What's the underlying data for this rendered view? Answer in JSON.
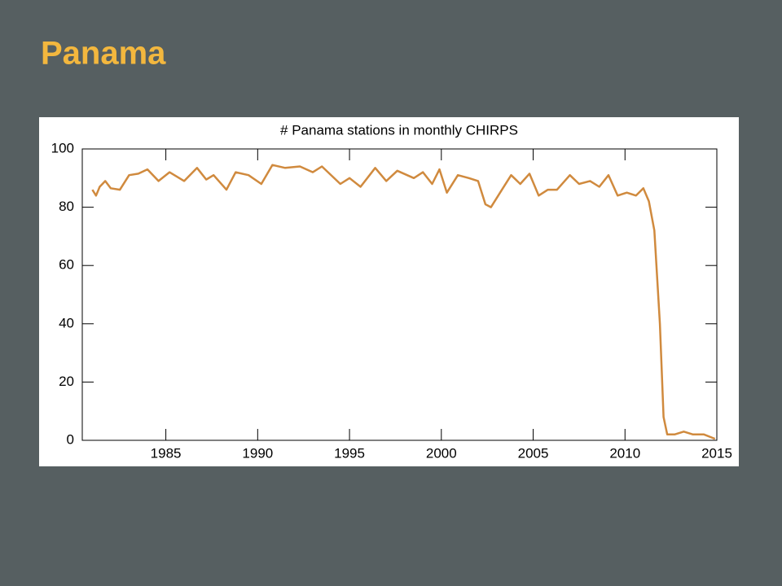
{
  "header": {
    "title": "Panama"
  },
  "chart_data": {
    "type": "line",
    "title": "# Panama stations in monthly CHIRPS",
    "x": [
      1981.0,
      1981.2,
      1981.4,
      1981.7,
      1982.0,
      1982.5,
      1983.0,
      1983.5,
      1984.0,
      1984.6,
      1985.2,
      1986.0,
      1986.7,
      1987.2,
      1987.6,
      1988.3,
      1988.8,
      1989.5,
      1990.2,
      1990.8,
      1991.5,
      1992.3,
      1993.0,
      1993.5,
      1994.5,
      1995.0,
      1995.6,
      1996.4,
      1997.0,
      1997.6,
      1998.5,
      1999.0,
      1999.5,
      1999.9,
      2000.3,
      2000.9,
      2001.5,
      2002.0,
      2002.4,
      2002.7,
      2003.3,
      2003.8,
      2004.3,
      2004.8,
      2005.3,
      2005.8,
      2006.3,
      2007.0,
      2007.5,
      2008.1,
      2008.6,
      2009.1,
      2009.6,
      2010.1,
      2010.6,
      2011.0,
      2011.3,
      2011.6,
      2011.9,
      2012.1,
      2012.3,
      2012.7,
      2013.2,
      2013.7,
      2014.3,
      2014.7,
      2014.9
    ],
    "values": [
      86,
      84,
      87,
      89,
      86.5,
      86,
      91,
      91.5,
      93,
      89,
      92,
      89,
      93.5,
      89.5,
      91,
      86,
      92,
      91,
      88,
      94.5,
      93.5,
      94,
      92,
      94,
      88,
      90,
      87,
      93.5,
      89,
      92.5,
      90,
      92,
      88,
      93,
      85,
      91,
      90,
      89,
      81,
      80,
      86,
      91,
      88,
      91.5,
      84,
      86,
      86,
      91,
      88,
      89,
      87,
      91,
      84,
      85,
      84,
      86.5,
      82,
      72,
      40,
      8,
      2,
      2,
      3,
      2,
      2,
      1,
      0.5
    ],
    "color": "#d08a3e",
    "xlim": [
      1980.45,
      2015
    ],
    "xticks": [
      1985,
      1990,
      1995,
      2000,
      2005,
      2010,
      2015
    ],
    "ylim": [
      0,
      100
    ],
    "yticks": [
      0,
      20,
      40,
      60,
      80,
      100
    ]
  }
}
